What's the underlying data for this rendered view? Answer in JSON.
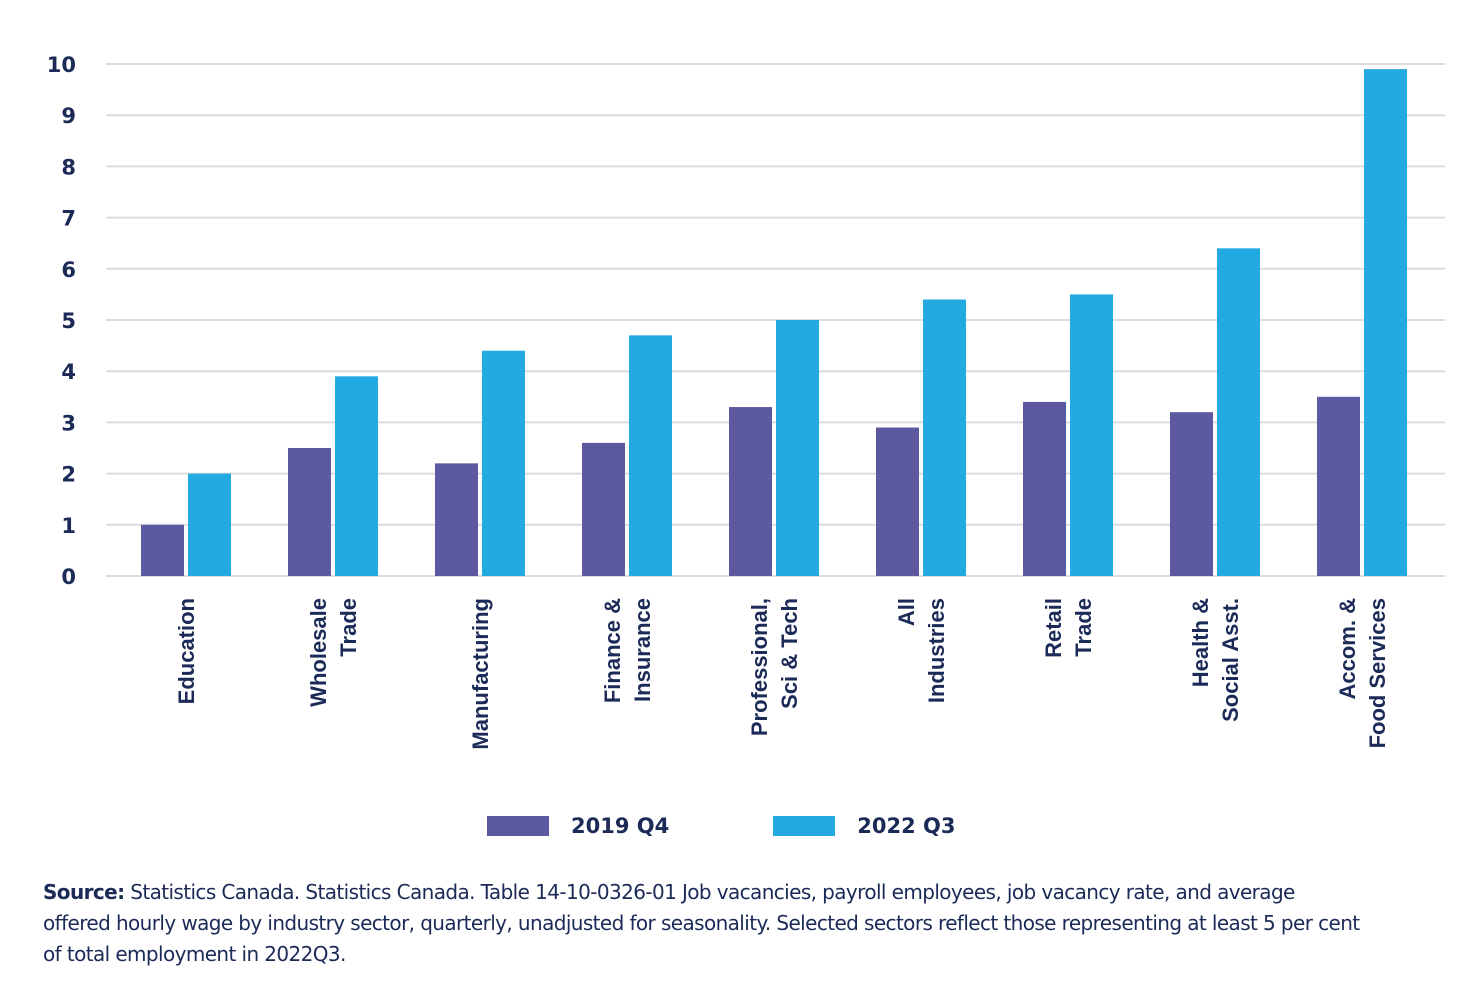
{
  "chart_data": {
    "type": "bar",
    "title": "",
    "xlabel": "",
    "ylabel": "",
    "ylim": [
      0,
      10
    ],
    "yticks": [
      "0",
      "1",
      "2",
      "3",
      "4",
      "5",
      "6",
      "7",
      "8",
      "9",
      "10"
    ],
    "grid": true,
    "legend_position": "bottom-center",
    "categories": [
      [
        "Education"
      ],
      [
        "Wholesale",
        "Trade"
      ],
      [
        "Manufacturing"
      ],
      [
        "Finance &",
        "Insurance"
      ],
      [
        "Professional,",
        "Sci & Tech"
      ],
      [
        "All",
        "Industries"
      ],
      [
        "Retail",
        "Trade"
      ],
      [
        "Health &",
        "Social Asst."
      ],
      [
        "Accom. &",
        "Food Services"
      ]
    ],
    "series": [
      {
        "name": "2019 Q4",
        "color": "#5d59a0",
        "values": [
          1.0,
          2.5,
          2.2,
          2.6,
          3.3,
          2.9,
          3.4,
          3.2,
          3.5
        ]
      },
      {
        "name": "2022 Q3",
        "color": "#24aae2",
        "values": [
          2.0,
          3.9,
          4.4,
          4.7,
          5.0,
          5.4,
          5.5,
          6.4,
          9.9
        ]
      }
    ]
  },
  "legend": {
    "items": [
      {
        "label": "2019 Q4",
        "color": "#5d59a0"
      },
      {
        "label": "2022 Q3",
        "color": "#24aae2"
      }
    ]
  },
  "source": {
    "prefix": "Source:",
    "text": " Statistics Canada. Statistics Canada. Table 14-10-0326-01  Job vacancies, payroll employees, job vacancy rate, and average offered hourly wage by industry sector, quarterly, unadjusted for seasonality.  Selected sectors reflect those representing at least 5 per cent of total employment in 2022Q3."
  },
  "colors": {
    "text": "#1b2a57",
    "grid": "#dcdcdc"
  }
}
